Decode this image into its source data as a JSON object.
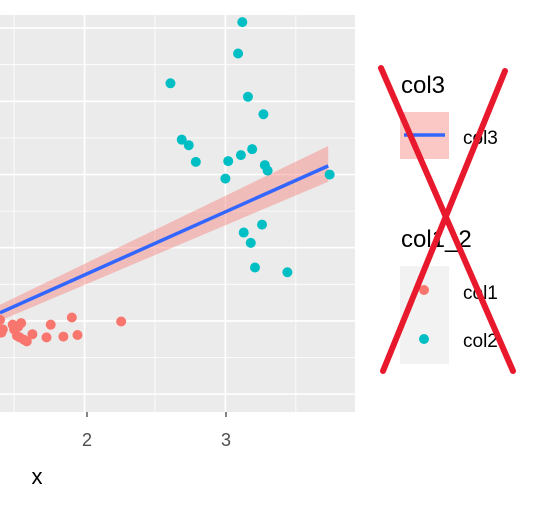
{
  "chart_data": {
    "type": "scatter",
    "title": "",
    "xlabel": "x",
    "ylabel": "",
    "x_ticks": [
      "2",
      "3"
    ],
    "xlim": [
      1.4,
      3.92
    ],
    "ylim": [
      0,
      1
    ],
    "grid": true,
    "legend_position": "right",
    "series": [
      {
        "name": "col1",
        "color": "#F8766D",
        "points": [
          [
            1.4,
            0.232
          ],
          [
            1.41,
            0.2
          ],
          [
            1.42,
            0.208
          ],
          [
            1.49,
            0.22
          ],
          [
            1.5,
            0.208
          ],
          [
            1.52,
            0.192
          ],
          [
            1.53,
            0.215
          ],
          [
            1.54,
            0.188
          ],
          [
            1.55,
            0.224
          ],
          [
            1.57,
            0.182
          ],
          [
            1.59,
            0.178
          ],
          [
            1.63,
            0.196
          ],
          [
            1.73,
            0.188
          ],
          [
            1.76,
            0.22
          ],
          [
            1.85,
            0.19
          ],
          [
            1.91,
            0.238
          ],
          [
            1.95,
            0.194
          ],
          [
            2.26,
            0.228
          ]
        ]
      },
      {
        "name": "col2",
        "color": "#00BFC4",
        "points": [
          [
            2.61,
            0.828
          ],
          [
            2.69,
            0.686
          ],
          [
            2.74,
            0.672
          ],
          [
            2.79,
            0.63
          ],
          [
            3.0,
            0.588
          ],
          [
            3.02,
            0.632
          ],
          [
            3.09,
            0.903
          ],
          [
            3.11,
            0.647
          ],
          [
            3.12,
            0.982
          ],
          [
            3.13,
            0.452
          ],
          [
            3.16,
            0.794
          ],
          [
            3.18,
            0.426
          ],
          [
            3.19,
            0.662
          ],
          [
            3.21,
            0.364
          ],
          [
            3.26,
            0.472
          ],
          [
            3.27,
            0.75
          ],
          [
            3.28,
            0.622
          ],
          [
            3.3,
            0.608
          ],
          [
            3.44,
            0.352
          ],
          [
            3.74,
            0.598
          ]
        ]
      }
    ],
    "trend_line": {
      "name": "col3",
      "color": "#3366FF",
      "band_color": "#F8766D",
      "x": [
        1.4,
        3.73
      ],
      "y": [
        0.25,
        0.62
      ],
      "band_upper": [
        0.27,
        0.67
      ],
      "band_lower": [
        0.23,
        0.58
      ]
    }
  },
  "legend": {
    "line_title": "col3",
    "line_label": "col3",
    "points_title": "col1_2",
    "points_labels": [
      "col1",
      "col2"
    ]
  },
  "overlay": {
    "color": "#E8192C"
  }
}
